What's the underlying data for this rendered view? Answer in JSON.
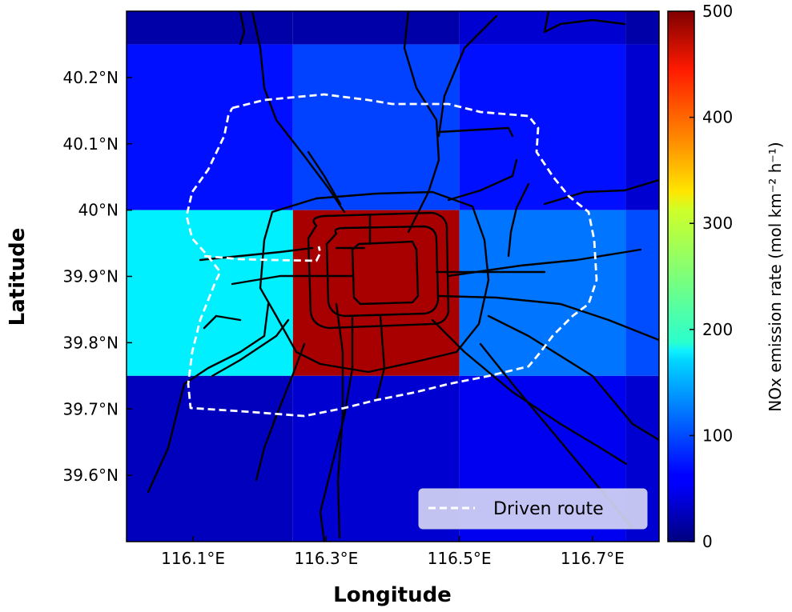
{
  "map": {
    "x_axis_title": "Longitude",
    "y_axis_title": "Latitude",
    "x_ticks": [
      {
        "value": 116.1,
        "label": "116.1°E"
      },
      {
        "value": 116.3,
        "label": "116.3°E"
      },
      {
        "value": 116.5,
        "label": "116.5°E"
      },
      {
        "value": 116.7,
        "label": "116.7°E"
      }
    ],
    "y_ticks": [
      {
        "value": 40.2,
        "label": "40.2°N"
      },
      {
        "value": 40.1,
        "label": "40.1°N"
      },
      {
        "value": 40.0,
        "label": "40°N"
      },
      {
        "value": 39.9,
        "label": "39.9°N"
      },
      {
        "value": 39.8,
        "label": "39.8°N"
      },
      {
        "value": 39.7,
        "label": "39.7°N"
      },
      {
        "value": 39.6,
        "label": "39.6°N"
      }
    ],
    "lon_range": [
      116.0,
      116.8
    ],
    "lat_range": [
      39.5,
      40.3
    ],
    "legend": {
      "label": "Driven route",
      "position": "bottom-right"
    }
  },
  "colorbar": {
    "title": "NOx emission rate (mol km⁻² h⁻¹)",
    "range": [
      0,
      500
    ],
    "ticks": [
      "0",
      "100",
      "200",
      "300",
      "400",
      "500"
    ],
    "colormap": "jet"
  },
  "chart_data": {
    "type": "heatmap",
    "title": "",
    "xlabel": "Longitude",
    "ylabel": "Latitude",
    "xlim": [
      116.0,
      116.8
    ],
    "ylim": [
      39.5,
      40.3
    ],
    "cells": [
      {
        "lon": [
          116.0,
          116.25
        ],
        "lat": [
          40.25,
          40.3
        ],
        "value": 20
      },
      {
        "lon": [
          116.25,
          116.5
        ],
        "lat": [
          40.25,
          40.3
        ],
        "value": 20
      },
      {
        "lon": [
          116.5,
          116.75
        ],
        "lat": [
          40.25,
          40.3
        ],
        "value": 40
      },
      {
        "lon": [
          116.75,
          116.8
        ],
        "lat": [
          40.25,
          40.3
        ],
        "value": 20
      },
      {
        "lon": [
          116.0,
          116.25
        ],
        "lat": [
          40.0,
          40.25
        ],
        "value": 70
      },
      {
        "lon": [
          116.25,
          116.5
        ],
        "lat": [
          40.0,
          40.25
        ],
        "value": 95
      },
      {
        "lon": [
          116.5,
          116.75
        ],
        "lat": [
          40.0,
          40.25
        ],
        "value": 70
      },
      {
        "lon": [
          116.75,
          116.8
        ],
        "lat": [
          40.0,
          40.25
        ],
        "value": 40
      },
      {
        "lon": [
          116.0,
          116.25
        ],
        "lat": [
          39.75,
          40.0
        ],
        "value": 180
      },
      {
        "lon": [
          116.25,
          116.5
        ],
        "lat": [
          39.75,
          40.0
        ],
        "value": 480
      },
      {
        "lon": [
          116.5,
          116.75
        ],
        "lat": [
          39.75,
          40.0
        ],
        "value": 120
      },
      {
        "lon": [
          116.75,
          116.8
        ],
        "lat": [
          39.75,
          40.0
        ],
        "value": 100
      },
      {
        "lon": [
          116.0,
          116.25
        ],
        "lat": [
          39.5,
          39.75
        ],
        "value": 30
      },
      {
        "lon": [
          116.25,
          116.5
        ],
        "lat": [
          39.5,
          39.75
        ],
        "value": 40
      },
      {
        "lon": [
          116.5,
          116.75
        ],
        "lat": [
          39.5,
          39.75
        ],
        "value": 55
      },
      {
        "lon": [
          116.75,
          116.8
        ],
        "lat": [
          39.5,
          39.75
        ],
        "value": 40
      }
    ]
  }
}
